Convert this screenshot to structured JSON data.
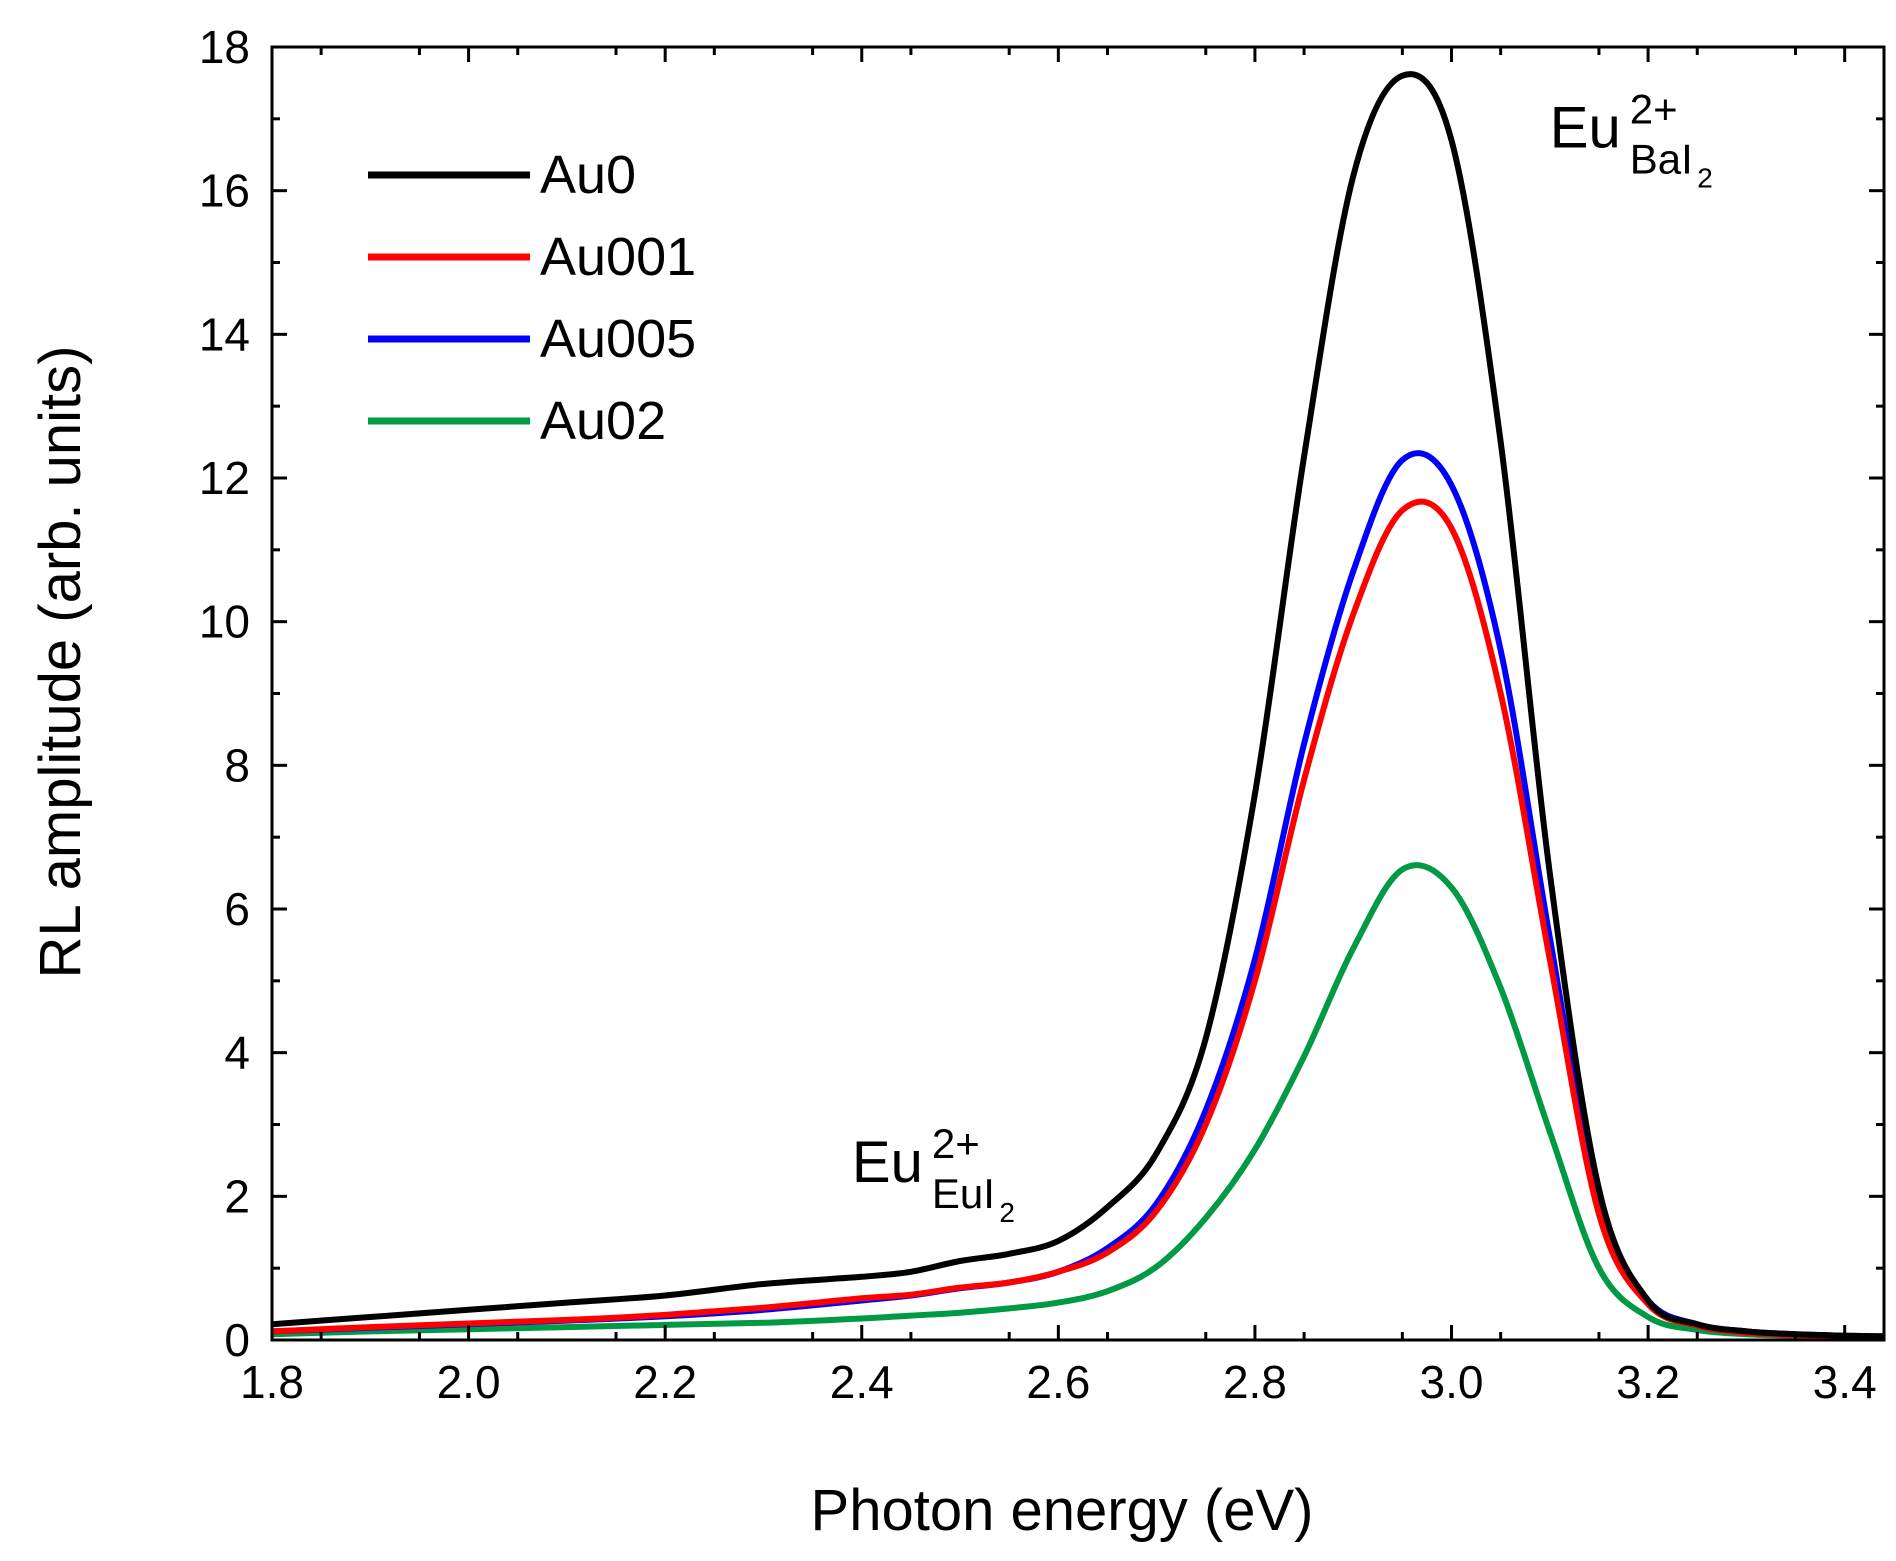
{
  "chart_data": {
    "type": "line",
    "xlabel": "Photon energy (eV)",
    "ylabel": "RL amplitude (arb. units)",
    "xlim": [
      1.8,
      3.44
    ],
    "ylim": [
      0,
      18
    ],
    "x_ticks": [
      "1.8",
      "2.0",
      "2.2",
      "2.4",
      "2.6",
      "2.8",
      "3.0",
      "3.2",
      "3.4"
    ],
    "y_ticks": [
      "0",
      "2",
      "4",
      "6",
      "8",
      "10",
      "12",
      "14",
      "16",
      "18"
    ],
    "legend_position": "top-left",
    "annotations": [
      {
        "base": "Eu",
        "sup": "2+",
        "sub": "BaI",
        "sub_sub": "2",
        "x": 3.1,
        "y": 16.6
      },
      {
        "base": "Eu",
        "sup": "2+",
        "sub": "EuI",
        "sub_sub": "2",
        "x": 2.39,
        "y": 2.2
      }
    ],
    "x": [
      1.8,
      1.9,
      2.0,
      2.1,
      2.2,
      2.3,
      2.4,
      2.45,
      2.5,
      2.55,
      2.6,
      2.65,
      2.7,
      2.75,
      2.8,
      2.85,
      2.9,
      2.95,
      3.0,
      3.05,
      3.1,
      3.15,
      3.2,
      3.25,
      3.3,
      3.35,
      3.4,
      3.44
    ],
    "series": [
      {
        "name": "Au0",
        "color": "#000000",
        "values": [
          0.22,
          0.32,
          0.42,
          0.52,
          0.62,
          0.78,
          0.88,
          0.95,
          1.1,
          1.2,
          1.38,
          1.85,
          2.6,
          4.2,
          7.6,
          12.3,
          16.2,
          17.6,
          16.7,
          12.5,
          6.5,
          2.1,
          0.55,
          0.22,
          0.12,
          0.08,
          0.06,
          0.05
        ]
      },
      {
        "name": "Au001",
        "color": "#ff0000",
        "values": [
          0.12,
          0.18,
          0.23,
          0.28,
          0.35,
          0.45,
          0.58,
          0.63,
          0.73,
          0.8,
          0.95,
          1.22,
          1.8,
          3.0,
          5.0,
          7.8,
          10.1,
          11.55,
          11.3,
          9.0,
          5.3,
          1.75,
          0.5,
          0.2,
          0.1,
          0.07,
          0.05,
          0.04
        ]
      },
      {
        "name": "Au005",
        "color": "#0000ff",
        "values": [
          0.12,
          0.17,
          0.22,
          0.27,
          0.33,
          0.42,
          0.55,
          0.62,
          0.72,
          0.8,
          0.95,
          1.28,
          1.9,
          3.2,
          5.3,
          8.3,
          10.7,
          12.25,
          11.9,
          9.6,
          5.6,
          1.85,
          0.55,
          0.22,
          0.12,
          0.08,
          0.06,
          0.05
        ]
      },
      {
        "name": "Au02",
        "color": "#009a44",
        "values": [
          0.08,
          0.12,
          0.15,
          0.18,
          0.21,
          0.24,
          0.3,
          0.34,
          0.38,
          0.44,
          0.52,
          0.68,
          1.02,
          1.7,
          2.65,
          3.95,
          5.45,
          6.55,
          6.3,
          4.9,
          2.9,
          1.0,
          0.32,
          0.14,
          0.08,
          0.06,
          0.05,
          0.04
        ]
      }
    ]
  }
}
